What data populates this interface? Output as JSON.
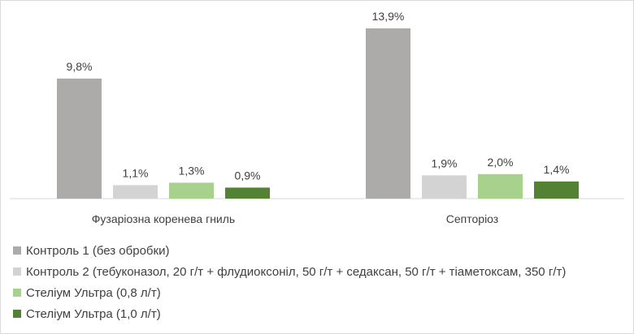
{
  "chart_data": {
    "type": "bar",
    "title": "",
    "xlabel": "",
    "ylabel": "",
    "ylim": [
      0,
      15
    ],
    "grid": false,
    "legend_position": "bottom-left",
    "categories": [
      "Фузаріозна коренева гниль",
      "Септоріоз"
    ],
    "series": [
      {
        "name": "Контроль 1 (без обробки)",
        "color": "#adaaaa",
        "values": [
          9.8,
          13.9
        ],
        "labels": [
          "9,8%",
          "13,9%"
        ]
      },
      {
        "name": "Контроль 2 (тебуконазол, 20 г/т + флудиоксоніл, 50 г/т + седаксан, 50 г/т + тіаметоксам, 350 г/т)",
        "color": "#d3d3d3",
        "values": [
          1.1,
          1.9
        ],
        "labels": [
          "1,1%",
          "1,9%"
        ]
      },
      {
        "name": "Стеліум Ультра (0,8 л/т)",
        "color": "#a9d18e",
        "values": [
          1.3,
          2.0
        ],
        "labels": [
          "1,3%",
          "2,0%"
        ]
      },
      {
        "name": "Стеліум Ультра (1,0 л/т)",
        "color": "#548235",
        "values": [
          0.9,
          1.4
        ],
        "labels": [
          "0,9%",
          "1,4%"
        ]
      }
    ]
  }
}
